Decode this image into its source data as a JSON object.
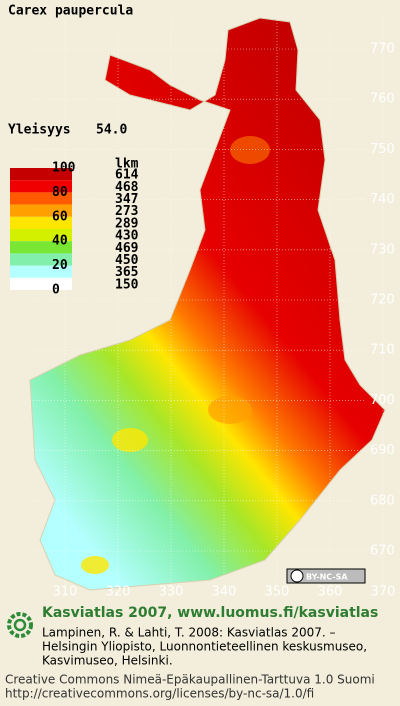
{
  "title": "Carex paupercula",
  "frequency": {
    "label": "Yleisyys",
    "value": "54.0"
  },
  "legend": {
    "count_header": "lkm",
    "class_labels": [
      "100",
      "80",
      "60",
      "40",
      "20",
      "0"
    ],
    "classes": [
      {
        "color": "#c40000",
        "count": 614
      },
      {
        "color": "#f00000",
        "count": 468
      },
      {
        "color": "#ff5a00",
        "count": 347
      },
      {
        "color": "#ffa000",
        "count": 273
      },
      {
        "color": "#ffe600",
        "count": 289
      },
      {
        "color": "#d2f000",
        "count": 430
      },
      {
        "color": "#78e632",
        "count": 469
      },
      {
        "color": "#82f0aa",
        "count": 450
      },
      {
        "color": "#b4ffff",
        "count": 365
      },
      {
        "color": "#ffffff",
        "count": 150
      }
    ]
  },
  "grid": {
    "northing": [
      "770",
      "760",
      "750",
      "740",
      "730",
      "720",
      "710",
      "700",
      "690",
      "680",
      "670"
    ],
    "easting": [
      "310",
      "320",
      "330",
      "340",
      "350",
      "360",
      "370"
    ]
  },
  "badge": "BY-NC-SA",
  "footer": {
    "site": "Kasviatlas 2007, www.luomus.fi/kasviatlas",
    "citation": [
      "Lampinen, R. & Lahti, T. 2008: Kasviatlas 2007. –",
      "Helsingin Yliopisto, Luonnontieteellinen keskusmuseo,",
      "Kasvimuseo, Helsinki."
    ],
    "license": [
      "Creative Commons Nimeä-Epäkaupallinen-Tarttuva 1.0 Suomi",
      "http://creativecommons.org/licenses/by-nc-sa/1.0/fi"
    ]
  }
}
